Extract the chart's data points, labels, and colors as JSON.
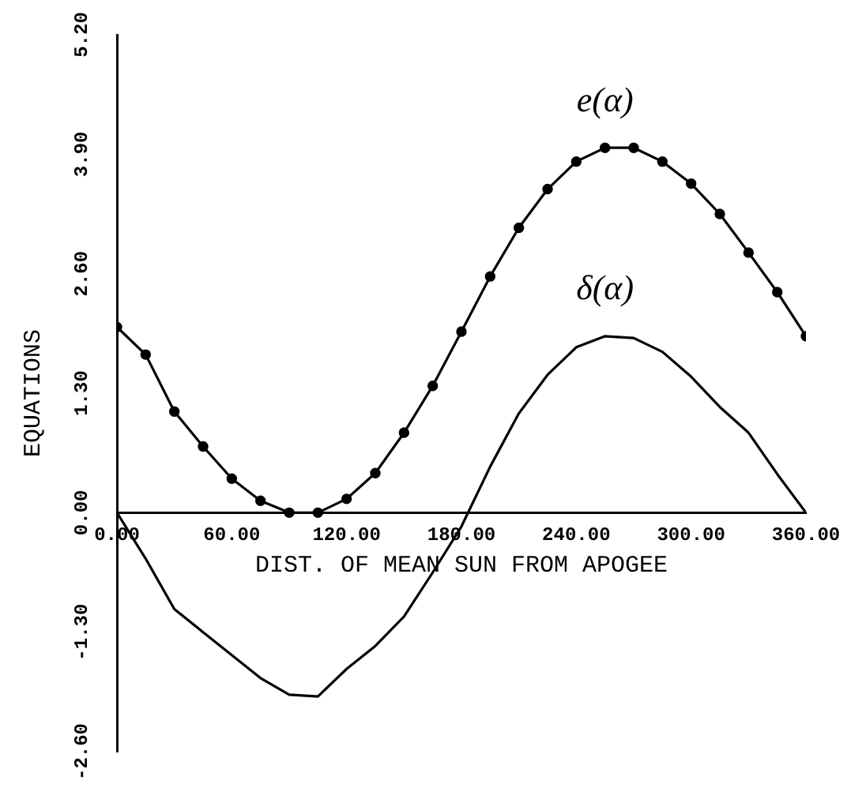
{
  "chart_data": {
    "type": "line",
    "xlabel": "DIST. OF MEAN SUN FROM APOGEE",
    "ylabel": "EQUATIONS",
    "xlim": [
      0,
      360
    ],
    "xticks": [
      {
        "value": 0,
        "label": "0.00"
      },
      {
        "value": 60,
        "label": "60.00"
      },
      {
        "value": 120,
        "label": "120.00"
      },
      {
        "value": 180,
        "label": "180.00"
      },
      {
        "value": 240,
        "label": "240.00"
      },
      {
        "value": 300,
        "label": "300.00"
      },
      {
        "value": 360,
        "label": "360.00"
      }
    ],
    "ylim": [
      -2.6,
      5.2
    ],
    "yticks": [
      {
        "value": -2.6,
        "label": "-2.60"
      },
      {
        "value": -1.3,
        "label": "-1.30"
      },
      {
        "value": 0,
        "label": "0.00"
      },
      {
        "value": 1.3,
        "label": "1.30"
      },
      {
        "value": 2.6,
        "label": "2.60"
      },
      {
        "value": 3.9,
        "label": "3.90"
      },
      {
        "value": 5.2,
        "label": "5.20"
      }
    ],
    "grid": false,
    "legend": false,
    "series": [
      {
        "name": "e(α)",
        "color": "#000000",
        "marker": "circle",
        "x": [
          0,
          15,
          30,
          45,
          60,
          75,
          90,
          105,
          120,
          135,
          150,
          165,
          180,
          195,
          210,
          225,
          240,
          255,
          270,
          285,
          300,
          315,
          330,
          345,
          360
        ],
        "values": [
          2.02,
          1.72,
          1.1,
          0.72,
          0.37,
          0.13,
          0,
          0,
          0.15,
          0.43,
          0.87,
          1.38,
          1.97,
          2.57,
          3.1,
          3.52,
          3.82,
          3.97,
          3.97,
          3.82,
          3.58,
          3.25,
          2.83,
          2.4,
          1.92
        ]
      },
      {
        "name": "δ(α)",
        "color": "#000000",
        "marker": "none",
        "x": [
          0,
          15,
          30,
          45,
          60,
          75,
          90,
          105,
          120,
          135,
          150,
          165,
          180,
          195,
          210,
          225,
          240,
          255,
          270,
          285,
          300,
          315,
          330,
          345,
          360
        ],
        "values": [
          0,
          -0.5,
          -1.05,
          -1.3,
          -1.55,
          -1.8,
          -1.98,
          -2.0,
          -1.7,
          -1.45,
          -1.13,
          -0.65,
          -0.15,
          0.5,
          1.08,
          1.5,
          1.8,
          1.92,
          1.9,
          1.75,
          1.48,
          1.15,
          0.87,
          0.42,
          0
        ]
      }
    ]
  }
}
